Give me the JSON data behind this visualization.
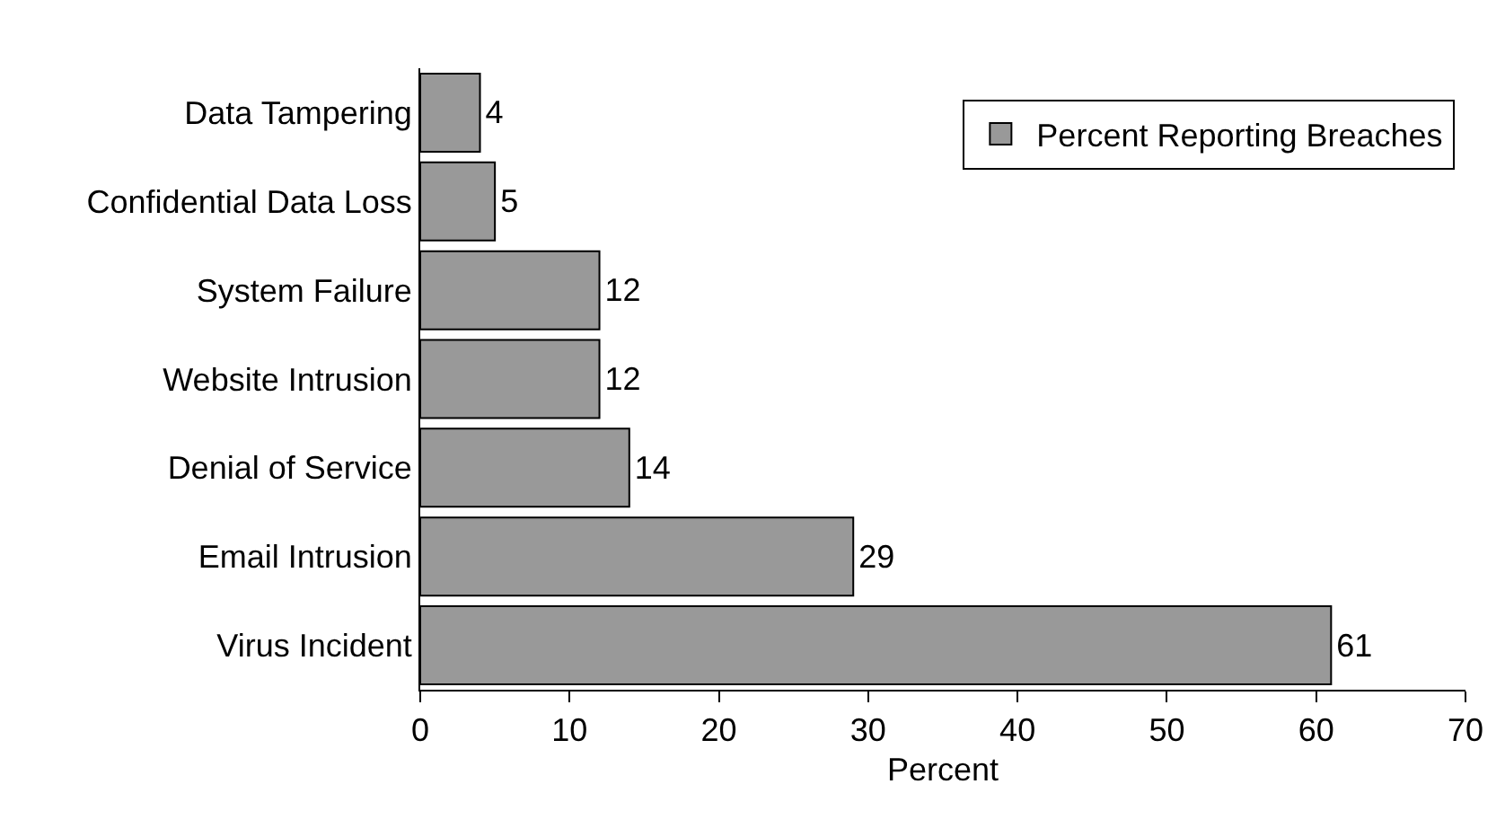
{
  "chart_data": {
    "type": "bar",
    "orientation": "horizontal",
    "xlabel": "Percent",
    "categories": [
      "Data Tampering",
      "Confidential Data Loss",
      "System Failure",
      "Website Intrusion",
      "Denial of Service",
      "Email Intrusion",
      "Virus Incident"
    ],
    "series": [
      {
        "name": "Percent Reporting Breaches",
        "color": "#999999",
        "values": [
          4,
          5,
          12,
          12,
          14,
          29,
          61
        ]
      }
    ],
    "xlim": [
      0,
      70
    ],
    "xticks": [
      0,
      10,
      20,
      30,
      40,
      50,
      60,
      70
    ],
    "data_labels": true,
    "grid": false,
    "legend": "top right"
  }
}
